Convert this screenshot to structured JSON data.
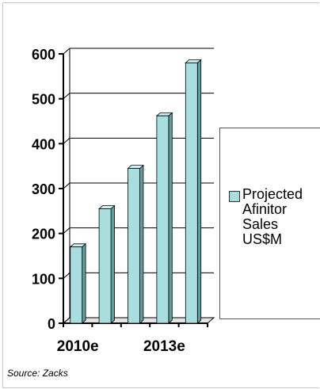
{
  "chart_data": {
    "type": "bar",
    "style": "3d-column",
    "categories": [
      "2010e",
      "",
      "",
      "2013e",
      ""
    ],
    "values": [
      170,
      255,
      345,
      462,
      580
    ],
    "title": "",
    "xlabel": "",
    "ylabel": "",
    "ylim": [
      0,
      600
    ],
    "yticks": [
      "0",
      "100",
      "200",
      "300",
      "400",
      "500",
      "600"
    ],
    "grid": true,
    "legend_position": "right",
    "series": [
      {
        "name": "Projected Afinitor Sales US$M",
        "color": "#a8dede",
        "values": [
          170,
          255,
          345,
          462,
          580
        ]
      }
    ]
  },
  "legend": {
    "label": "Projected\nAfinitor\nSales\nUS$M"
  },
  "source_note": "Source: Zacks"
}
